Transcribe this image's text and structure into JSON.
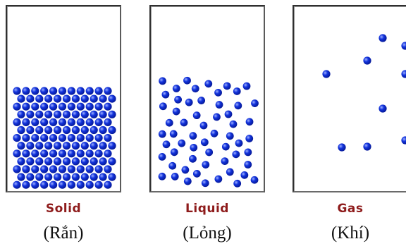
{
  "states": [
    {
      "id": "solid",
      "label": "Solid",
      "label_vi": "(Rắn)"
    },
    {
      "id": "liquid",
      "label": "Liquid",
      "label_vi": "(Lỏng)"
    },
    {
      "id": "gas",
      "label": "Gas",
      "label_vi": "(Khí)"
    }
  ],
  "colors": {
    "particle": "#1233dd",
    "particle_highlight": "#9fb0ff",
    "label": "#8e1b1b"
  }
}
